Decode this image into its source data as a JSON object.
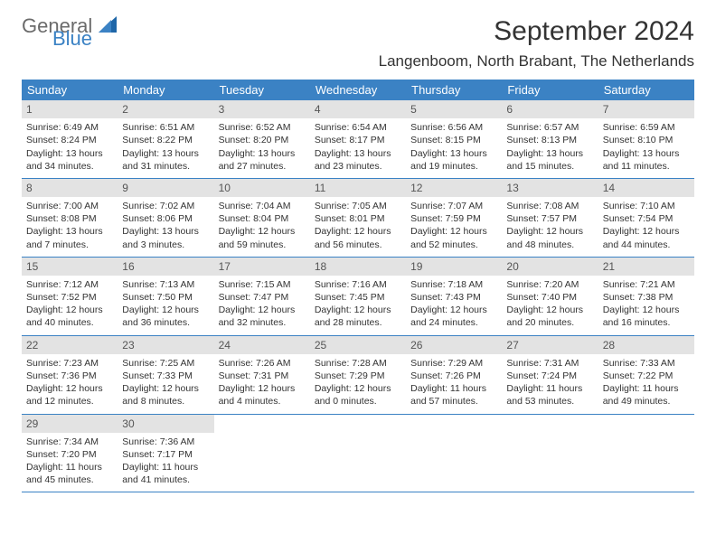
{
  "brand": {
    "part1": "General",
    "part2": "Blue",
    "color_gray": "#6b6b6b",
    "color_blue": "#3b82c4"
  },
  "title": "September 2024",
  "location": "Langenboom, North Brabant, The Netherlands",
  "theme": {
    "header_bg": "#3b82c4",
    "header_text": "#ffffff",
    "daynum_bg": "#e3e3e3",
    "rule_color": "#3b82c4",
    "text_color": "#333333",
    "background": "#ffffff"
  },
  "dow": [
    "Sunday",
    "Monday",
    "Tuesday",
    "Wednesday",
    "Thursday",
    "Friday",
    "Saturday"
  ],
  "weeks": [
    [
      {
        "n": 1,
        "sr": "6:49 AM",
        "ss": "8:24 PM",
        "dl": "13 hours and 34 minutes."
      },
      {
        "n": 2,
        "sr": "6:51 AM",
        "ss": "8:22 PM",
        "dl": "13 hours and 31 minutes."
      },
      {
        "n": 3,
        "sr": "6:52 AM",
        "ss": "8:20 PM",
        "dl": "13 hours and 27 minutes."
      },
      {
        "n": 4,
        "sr": "6:54 AM",
        "ss": "8:17 PM",
        "dl": "13 hours and 23 minutes."
      },
      {
        "n": 5,
        "sr": "6:56 AM",
        "ss": "8:15 PM",
        "dl": "13 hours and 19 minutes."
      },
      {
        "n": 6,
        "sr": "6:57 AM",
        "ss": "8:13 PM",
        "dl": "13 hours and 15 minutes."
      },
      {
        "n": 7,
        "sr": "6:59 AM",
        "ss": "8:10 PM",
        "dl": "13 hours and 11 minutes."
      }
    ],
    [
      {
        "n": 8,
        "sr": "7:00 AM",
        "ss": "8:08 PM",
        "dl": "13 hours and 7 minutes."
      },
      {
        "n": 9,
        "sr": "7:02 AM",
        "ss": "8:06 PM",
        "dl": "13 hours and 3 minutes."
      },
      {
        "n": 10,
        "sr": "7:04 AM",
        "ss": "8:04 PM",
        "dl": "12 hours and 59 minutes."
      },
      {
        "n": 11,
        "sr": "7:05 AM",
        "ss": "8:01 PM",
        "dl": "12 hours and 56 minutes."
      },
      {
        "n": 12,
        "sr": "7:07 AM",
        "ss": "7:59 PM",
        "dl": "12 hours and 52 minutes."
      },
      {
        "n": 13,
        "sr": "7:08 AM",
        "ss": "7:57 PM",
        "dl": "12 hours and 48 minutes."
      },
      {
        "n": 14,
        "sr": "7:10 AM",
        "ss": "7:54 PM",
        "dl": "12 hours and 44 minutes."
      }
    ],
    [
      {
        "n": 15,
        "sr": "7:12 AM",
        "ss": "7:52 PM",
        "dl": "12 hours and 40 minutes."
      },
      {
        "n": 16,
        "sr": "7:13 AM",
        "ss": "7:50 PM",
        "dl": "12 hours and 36 minutes."
      },
      {
        "n": 17,
        "sr": "7:15 AM",
        "ss": "7:47 PM",
        "dl": "12 hours and 32 minutes."
      },
      {
        "n": 18,
        "sr": "7:16 AM",
        "ss": "7:45 PM",
        "dl": "12 hours and 28 minutes."
      },
      {
        "n": 19,
        "sr": "7:18 AM",
        "ss": "7:43 PM",
        "dl": "12 hours and 24 minutes."
      },
      {
        "n": 20,
        "sr": "7:20 AM",
        "ss": "7:40 PM",
        "dl": "12 hours and 20 minutes."
      },
      {
        "n": 21,
        "sr": "7:21 AM",
        "ss": "7:38 PM",
        "dl": "12 hours and 16 minutes."
      }
    ],
    [
      {
        "n": 22,
        "sr": "7:23 AM",
        "ss": "7:36 PM",
        "dl": "12 hours and 12 minutes."
      },
      {
        "n": 23,
        "sr": "7:25 AM",
        "ss": "7:33 PM",
        "dl": "12 hours and 8 minutes."
      },
      {
        "n": 24,
        "sr": "7:26 AM",
        "ss": "7:31 PM",
        "dl": "12 hours and 4 minutes."
      },
      {
        "n": 25,
        "sr": "7:28 AM",
        "ss": "7:29 PM",
        "dl": "12 hours and 0 minutes."
      },
      {
        "n": 26,
        "sr": "7:29 AM",
        "ss": "7:26 PM",
        "dl": "11 hours and 57 minutes."
      },
      {
        "n": 27,
        "sr": "7:31 AM",
        "ss": "7:24 PM",
        "dl": "11 hours and 53 minutes."
      },
      {
        "n": 28,
        "sr": "7:33 AM",
        "ss": "7:22 PM",
        "dl": "11 hours and 49 minutes."
      }
    ],
    [
      {
        "n": 29,
        "sr": "7:34 AM",
        "ss": "7:20 PM",
        "dl": "11 hours and 45 minutes."
      },
      {
        "n": 30,
        "sr": "7:36 AM",
        "ss": "7:17 PM",
        "dl": "11 hours and 41 minutes."
      },
      null,
      null,
      null,
      null,
      null
    ]
  ],
  "labels": {
    "sunrise": "Sunrise:",
    "sunset": "Sunset:",
    "daylight": "Daylight:"
  }
}
